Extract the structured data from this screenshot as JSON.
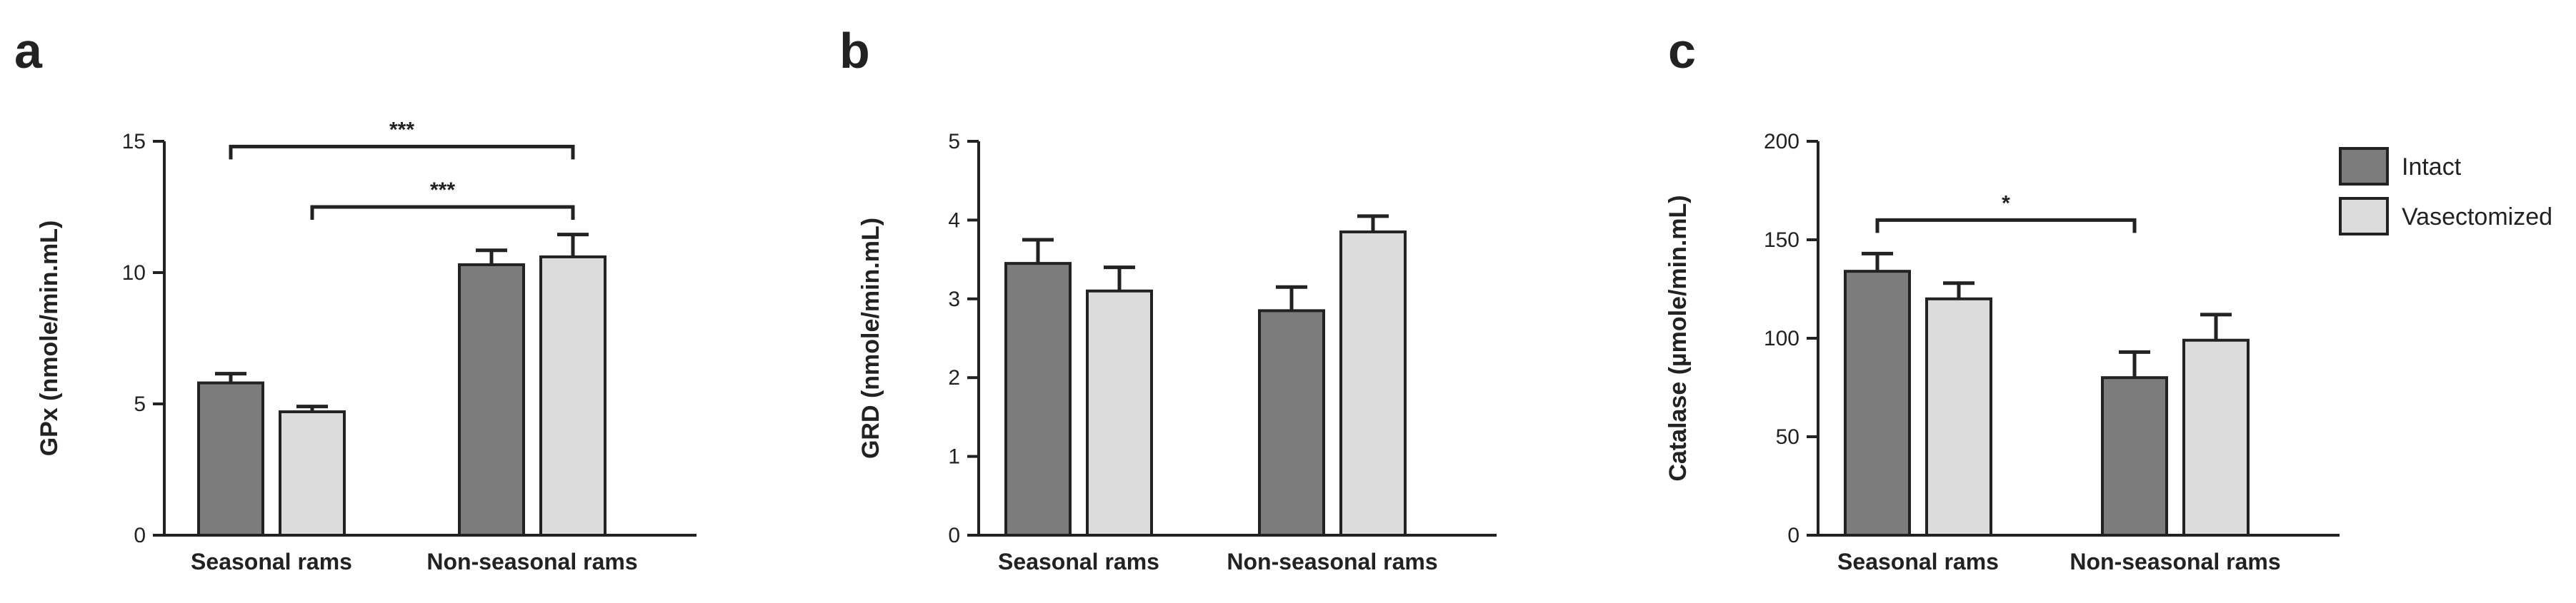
{
  "legend": {
    "items": [
      {
        "label": "Intact",
        "color": "#7c7c7c"
      },
      {
        "label": "Vasectomized",
        "color": "#dcdcdc"
      }
    ]
  },
  "chart_data": [
    {
      "type": "bar",
      "panel": "a",
      "title": "",
      "xlabel": "",
      "ylabel": "GPx (nmole/min.mL)",
      "ylim": [
        0,
        15
      ],
      "yticks": [
        0,
        5,
        10,
        15
      ],
      "categories": [
        "Seasonal rams",
        "Non-seasonal rams"
      ],
      "series": [
        {
          "name": "Intact",
          "values": [
            5.8,
            10.3
          ],
          "errors": [
            0.35,
            0.55
          ]
        },
        {
          "name": "Vasectomized",
          "values": [
            4.7,
            10.6
          ],
          "errors": [
            0.2,
            0.85
          ]
        }
      ],
      "significance": [
        {
          "label": "***",
          "from": [
            0,
            0
          ],
          "to": [
            1,
            1
          ],
          "y": 14.8
        },
        {
          "label": "***",
          "from": [
            0,
            1
          ],
          "to": [
            1,
            1
          ],
          "y": 12.5
        }
      ]
    },
    {
      "type": "bar",
      "panel": "b",
      "title": "",
      "xlabel": "",
      "ylabel": "GRD (nmole/min.mL)",
      "ylim": [
        0,
        5
      ],
      "yticks": [
        0,
        1,
        2,
        3,
        4,
        5
      ],
      "categories": [
        "Seasonal rams",
        "Non-seasonal rams"
      ],
      "series": [
        {
          "name": "Intact",
          "values": [
            3.45,
            2.85
          ],
          "errors": [
            0.3,
            0.3
          ]
        },
        {
          "name": "Vasectomized",
          "values": [
            3.1,
            3.85
          ],
          "errors": [
            0.3,
            0.2
          ]
        }
      ],
      "significance": []
    },
    {
      "type": "bar",
      "panel": "c",
      "title": "",
      "xlabel": "",
      "ylabel": "Catalase (µmole/min.mL)",
      "ylim": [
        0,
        200
      ],
      "yticks": [
        0,
        50,
        100,
        150,
        200
      ],
      "categories": [
        "Seasonal rams",
        "Non-seasonal rams"
      ],
      "series": [
        {
          "name": "Intact",
          "values": [
            134,
            80
          ],
          "errors": [
            9,
            13
          ]
        },
        {
          "name": "Vasectomized",
          "values": [
            120,
            99
          ],
          "errors": [
            8,
            13
          ]
        }
      ],
      "significance": [
        {
          "label": "*",
          "from": [
            0,
            0
          ],
          "to": [
            1,
            0
          ],
          "y": 160
        }
      ]
    }
  ]
}
